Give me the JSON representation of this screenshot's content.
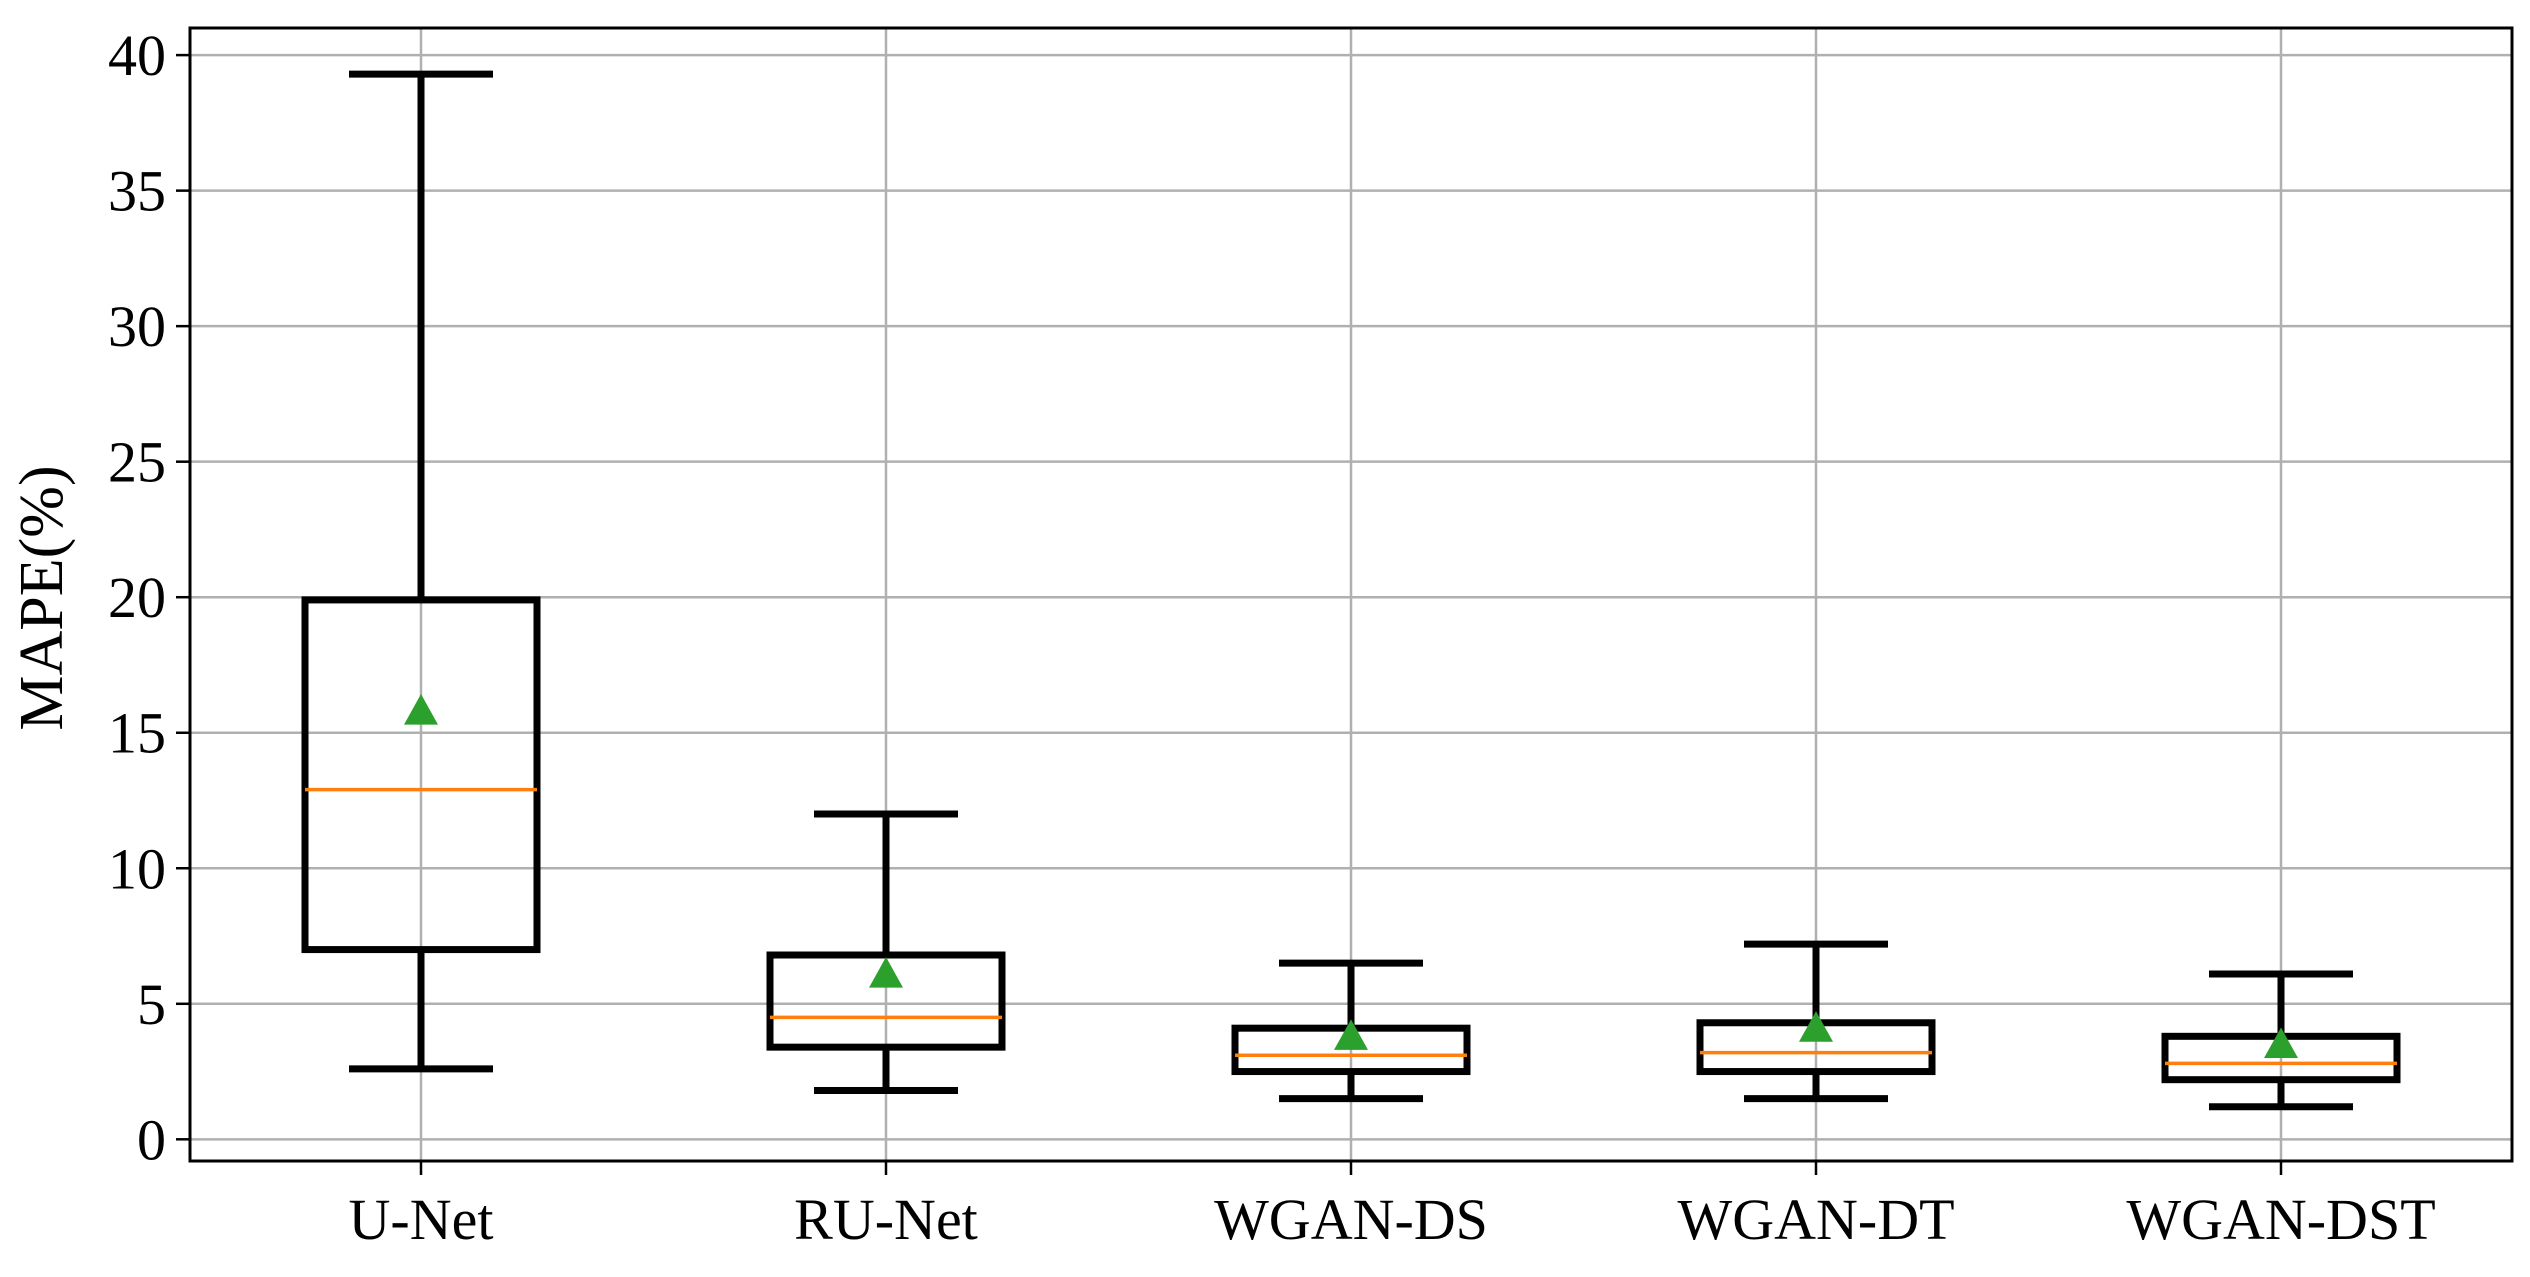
{
  "chart_data": {
    "type": "box",
    "title": "",
    "xlabel": "",
    "ylabel": "MAPE(%)",
    "ylim": [
      -0.8,
      41
    ],
    "yticks": [
      0,
      5,
      10,
      15,
      20,
      25,
      30,
      35,
      40
    ],
    "ytick_labels": [
      "0",
      "5",
      "10",
      "15",
      "20",
      "25",
      "30",
      "35",
      "40"
    ],
    "grid": true,
    "categories": [
      "U-Net",
      "RU-Net",
      "WGAN-DS",
      "WGAN-DT",
      "WGAN-DST"
    ],
    "boxes": [
      {
        "whisker_low": 2.6,
        "q1": 7.0,
        "median": 12.9,
        "q3": 19.9,
        "whisker_high": 39.3,
        "mean": 15.8
      },
      {
        "whisker_low": 1.8,
        "q1": 3.4,
        "median": 4.5,
        "q3": 6.8,
        "whisker_high": 12.0,
        "mean": 6.1
      },
      {
        "whisker_low": 1.5,
        "q1": 2.5,
        "median": 3.1,
        "q3": 4.1,
        "whisker_high": 6.5,
        "mean": 3.8
      },
      {
        "whisker_low": 1.5,
        "q1": 2.5,
        "median": 3.2,
        "q3": 4.3,
        "whisker_high": 7.2,
        "mean": 4.1
      },
      {
        "whisker_low": 1.2,
        "q1": 2.2,
        "median": 2.8,
        "q3": 3.8,
        "whisker_high": 6.1,
        "mean": 3.5
      }
    ],
    "colors": {
      "box": "#000000",
      "median": "#ff7f0e",
      "mean_marker": "#2ca02c",
      "grid": "#b0b0b0"
    },
    "mean_marker_shape": "triangle"
  }
}
